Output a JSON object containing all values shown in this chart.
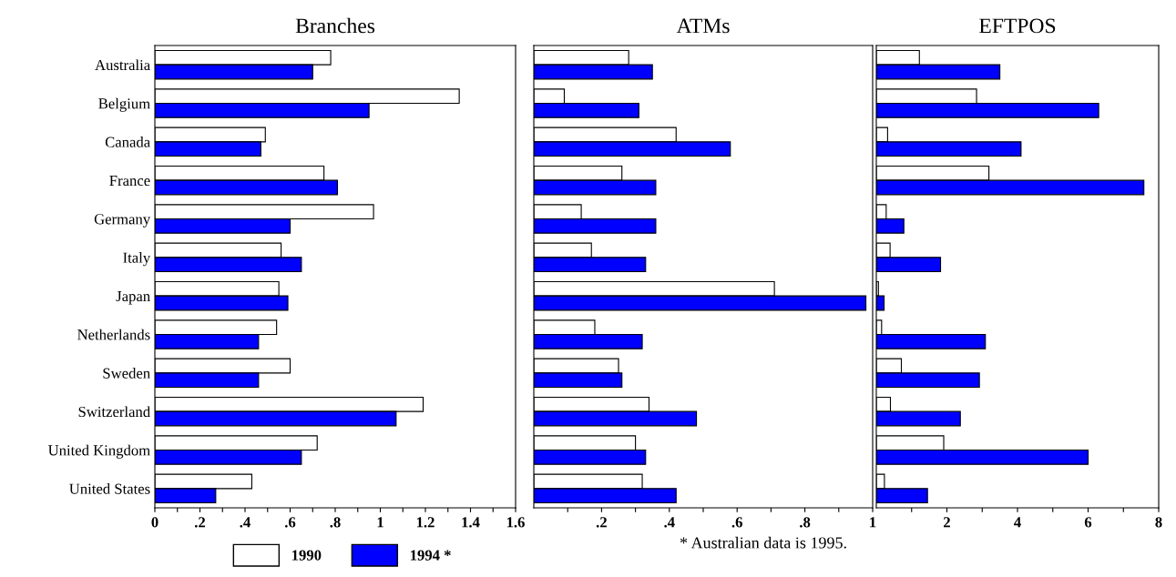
{
  "chart_data": [
    {
      "type": "bar",
      "orientation": "horizontal",
      "title": "Branches",
      "legend": "bottom",
      "categories": [
        "Australia",
        "Belgium",
        "Canada",
        "France",
        "Germany",
        "Italy",
        "Japan",
        "Netherlands",
        "Sweden",
        "Switzerland",
        "United Kingdom",
        "United States"
      ],
      "series": [
        {
          "name": "1990",
          "color": "#ffffff",
          "values": [
            0.78,
            1.35,
            0.49,
            0.75,
            0.97,
            0.56,
            0.55,
            0.54,
            0.6,
            1.19,
            0.72,
            0.43
          ]
        },
        {
          "name": "1994 *",
          "color": "#0000ff",
          "values": [
            0.7,
            0.95,
            0.47,
            0.81,
            0.6,
            0.65,
            0.59,
            0.46,
            0.46,
            1.07,
            0.65,
            0.27
          ]
        }
      ],
      "xlim": [
        0,
        1.6
      ],
      "xticks": [
        0,
        {
          "value": 0.1,
          "label": null
        },
        {
          "value": 0.2,
          "label": ".2"
        },
        {
          "value": 0.3,
          "label": null
        },
        {
          "value": 0.4,
          "label": ".4"
        },
        {
          "value": 0.5,
          "label": null
        },
        {
          "value": 0.6,
          "label": ".6"
        },
        {
          "value": 0.7,
          "label": null
        },
        {
          "value": 0.8,
          "label": ".8"
        },
        {
          "value": 0.9,
          "label": null
        },
        1,
        {
          "value": 1.1,
          "label": null
        },
        1.2,
        {
          "value": 1.3,
          "label": null
        },
        1.4,
        {
          "value": 1.5,
          "label": null
        },
        1.6
      ]
    },
    {
      "type": "bar",
      "orientation": "horizontal",
      "title": "ATMs",
      "tick_labels": "x",
      "categories": [
        null,
        null,
        null,
        null,
        null,
        null,
        null,
        null,
        null,
        null,
        null,
        null
      ],
      "series": [
        {
          "color": "#ffffff",
          "values": [
            0.28,
            0.09,
            0.42,
            0.26,
            0.14,
            0.17,
            0.71,
            0.18,
            0.25,
            0.34,
            0.3,
            0.32
          ]
        },
        {
          "color": "#0000ff",
          "values": [
            0.35,
            0.31,
            0.58,
            0.36,
            0.36,
            0.33,
            0.98,
            0.32,
            0.26,
            0.48,
            0.33,
            0.42
          ]
        }
      ],
      "xlim": [
        0,
        1
      ],
      "xticks": [
        {
          "value": 0.1,
          "label": null
        },
        {
          "value": 0.2,
          "label": ".2"
        },
        {
          "value": 0.3,
          "label": null
        },
        {
          "value": 0.4,
          "label": ".4"
        },
        {
          "value": 0.5,
          "label": null
        },
        {
          "value": 0.6,
          "label": ".6"
        },
        {
          "value": 0.7,
          "label": null
        },
        {
          "value": 0.8,
          "label": ".8"
        },
        {
          "value": 0.9,
          "label": null
        },
        1
      ],
      "annotations": [
        "* Australian data is 1995."
      ]
    },
    {
      "type": "bar",
      "orientation": "horizontal",
      "title": "EFTPOS",
      "tick_labels": "x",
      "categories": [
        null,
        null,
        null,
        null,
        null,
        null,
        null,
        null,
        null,
        null,
        null,
        null
      ],
      "series": [
        {
          "color": "#ffffff",
          "values": [
            1.22,
            2.84,
            0.32,
            3.19,
            0.28,
            0.39,
            0.06,
            0.15,
            0.71,
            0.4,
            1.91,
            0.23
          ]
        },
        {
          "color": "#0000ff",
          "values": [
            3.5,
            6.3,
            4.1,
            7.58,
            0.78,
            1.82,
            0.22,
            3.09,
            2.92,
            2.38,
            6.0,
            1.45
          ]
        }
      ],
      "xlim": [
        0,
        8
      ],
      "xticks": [
        {
          "value": 1,
          "label": null
        },
        2,
        {
          "value": 3,
          "label": null
        },
        4,
        {
          "value": 5,
          "label": null
        },
        6,
        {
          "value": 7,
          "label": null
        },
        8
      ]
    }
  ]
}
